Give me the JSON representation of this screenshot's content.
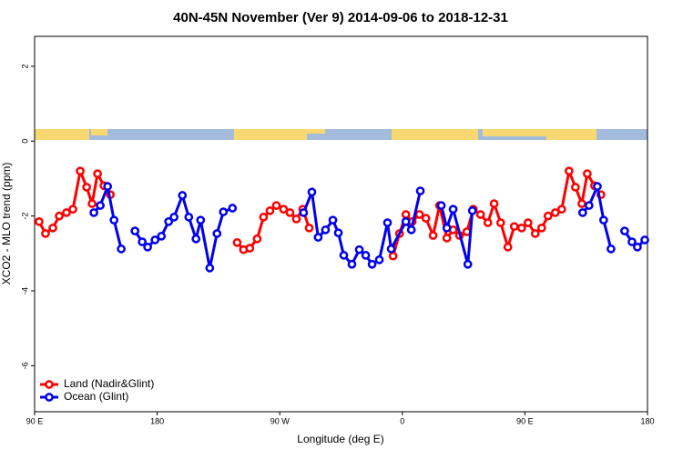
{
  "chart_data": {
    "type": "line",
    "title": "40N-45N November (Ver 9)   2014-09-06 to 2018-12-31",
    "xlabel": "Longitude (deg E)",
    "ylabel": "XCO2 - MLO trend (ppm)",
    "xlim": [
      90,
      540
    ],
    "xticks": [
      {
        "value": 90,
        "label": "90 E"
      },
      {
        "value": 180,
        "label": "180"
      },
      {
        "value": 270,
        "label": "90 W"
      },
      {
        "value": 360,
        "label": "0"
      },
      {
        "value": 450,
        "label": "90 E"
      },
      {
        "value": 540,
        "label": "180"
      }
    ],
    "ylim": [
      -7.23,
      2.8
    ],
    "yticks": [
      2,
      0,
      -2,
      -4,
      -6
    ],
    "legend": "bottom-left",
    "series": [
      {
        "name": "Land (Nadir&Glint)",
        "color": "#ff0000",
        "x": [
          93.3,
          98.0,
          103.4,
          108.1,
          113.4,
          118.1,
          123.5,
          128.2,
          132.2,
          136.2,
          140.9,
          145.6,
          null,
          238.7,
          243.4,
          248.0,
          253.4,
          258.1,
          262.8,
          267.5,
          272.8,
          277.5,
          282.2,
          286.9,
          291.6,
          null,
          353.2,
          357.9,
          362.6,
          367.2,
          372.6,
          377.3,
          382.6,
          387.3,
          392.7,
          397.3,
          402.0,
          407.4,
          412.1,
          417.4,
          422.8,
          427.4,
          432.2,
          437.5,
          442.2,
          447.6,
          452.3,
          457.6,
          462.3,
          467.0,
          472.3,
          477.0,
          482.4,
          487.1,
          491.8,
          495.8,
          501.1,
          505.8
        ],
        "values": [
          -2.15,
          -2.47,
          -2.32,
          -2.0,
          -1.91,
          -1.82,
          -0.8,
          -1.23,
          -1.67,
          -0.87,
          -1.19,
          -1.43,
          null,
          -2.71,
          -2.9,
          -2.86,
          -2.61,
          -2.03,
          -1.86,
          -1.72,
          -1.82,
          -1.91,
          -2.08,
          -1.82,
          -2.32,
          null,
          -3.07,
          -2.47,
          -1.96,
          -2.15,
          -1.96,
          -2.06,
          -2.52,
          -1.72,
          -2.59,
          -2.37,
          -2.52,
          -2.42,
          -1.82,
          -1.96,
          -2.18,
          -1.67,
          -2.18,
          -2.83,
          -2.28,
          -2.32,
          -2.18,
          -2.47,
          -2.32,
          -2.0,
          -1.91,
          -1.82,
          -0.8,
          -1.23,
          -1.67,
          -0.87,
          -1.19,
          -1.43
        ]
      },
      {
        "name": "Ocean (Glint)",
        "color": "#0000ee",
        "x": [
          133.5,
          138.2,
          143.6,
          148.3,
          153.6,
          null,
          163.7,
          169.0,
          173.0,
          178.4,
          183.1,
          188.4,
          192.4,
          198.5,
          203.2,
          208.5,
          211.9,
          218.6,
          223.9,
          228.6,
          235.3,
          null,
          287.5,
          293.6,
          298.2,
          303.6,
          309.0,
          313.0,
          317.0,
          323.0,
          328.4,
          333.1,
          337.8,
          343.1,
          349.1,
          351.8,
          362.6,
          366.6,
          373.2,
          null,
          388.6,
          392.7,
          397.3,
          408.1,
          411.4,
          null,
          492.4,
          497.1,
          503.2,
          507.8,
          513.2,
          null,
          523.2,
          528.6,
          532.6,
          538.0
        ],
        "values": [
          -1.91,
          -1.72,
          -1.21,
          -2.11,
          -2.88,
          null,
          -2.4,
          -2.69,
          -2.83,
          -2.64,
          -2.54,
          -2.15,
          -2.03,
          -1.45,
          -2.03,
          -2.61,
          -2.11,
          -3.39,
          -2.47,
          -1.89,
          -1.79,
          null,
          -1.91,
          -1.36,
          -2.57,
          -2.37,
          -2.11,
          -2.45,
          -3.05,
          -3.29,
          -2.9,
          -3.05,
          -3.29,
          -3.17,
          -2.18,
          -2.88,
          -2.15,
          -2.37,
          -1.33,
          null,
          -1.72,
          -2.32,
          -1.82,
          -3.29,
          -1.86,
          null,
          -1.91,
          -1.72,
          -1.21,
          -2.11,
          -2.88,
          null,
          -2.4,
          -2.69,
          -2.83,
          -2.64
        ]
      }
    ]
  }
}
